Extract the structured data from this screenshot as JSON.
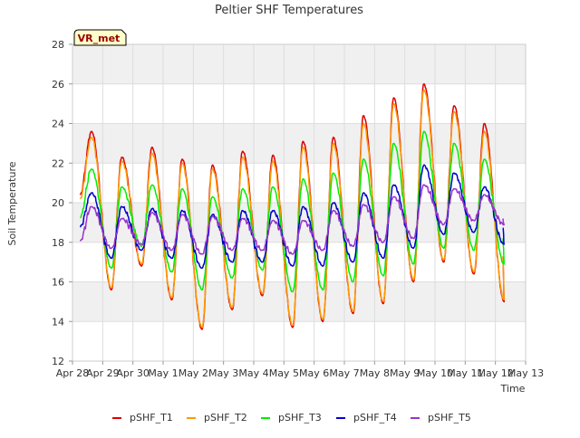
{
  "chart_data": {
    "type": "line",
    "title": "Peltier SHF Temperatures",
    "xlabel": "Time",
    "ylabel": "Soil Temperature",
    "badge": "VR_met",
    "ylim": [
      12,
      28
    ],
    "yticks": [
      12,
      14,
      16,
      18,
      20,
      22,
      24,
      26,
      28
    ],
    "xlim": [
      0,
      15
    ],
    "xticks": [
      {
        "x": 0,
        "label": "Apr 28"
      },
      {
        "x": 1,
        "label": "Apr 29"
      },
      {
        "x": 2,
        "label": "Apr 30"
      },
      {
        "x": 3,
        "label": "May 1"
      },
      {
        "x": 4,
        "label": "May 2"
      },
      {
        "x": 5,
        "label": "May 3"
      },
      {
        "x": 6,
        "label": "May 4"
      },
      {
        "x": 7,
        "label": "May 5"
      },
      {
        "x": 8,
        "label": "May 6"
      },
      {
        "x": 9,
        "label": "May 7"
      },
      {
        "x": 10,
        "label": "May 8"
      },
      {
        "x": 11,
        "label": "May 9"
      },
      {
        "x": 12,
        "label": "May 10"
      },
      {
        "x": 13,
        "label": "May 11"
      },
      {
        "x": 14,
        "label": "May 12"
      },
      {
        "x": 15,
        "label": "May 13"
      }
    ],
    "grid": true,
    "legend": "bottom",
    "x_start": 0.25,
    "x_end": 14.25,
    "series": [
      {
        "name": "pSHF_T1",
        "color": "#dd0000",
        "min": [
          null,
          15.6,
          16.8,
          15.1,
          13.6,
          14.6,
          15.3,
          13.7,
          14.0,
          14.4,
          14.9,
          16.0,
          17.0,
          16.4,
          15.0
        ],
        "max": [
          23.6,
          22.3,
          22.8,
          22.2,
          21.9,
          22.6,
          22.4,
          23.1,
          23.3,
          24.4,
          25.3,
          26.0,
          24.9,
          24.0
        ]
      },
      {
        "name": "pSHF_T2",
        "color": "#ff9900",
        "min": [
          null,
          15.7,
          16.9,
          15.2,
          13.7,
          14.7,
          15.4,
          13.8,
          14.1,
          14.5,
          15.0,
          16.1,
          17.1,
          16.5,
          15.1
        ],
        "max": [
          23.3,
          22.1,
          22.5,
          22.0,
          21.7,
          22.3,
          22.1,
          22.8,
          23.0,
          24.0,
          25.0,
          25.7,
          24.6,
          23.6
        ]
      },
      {
        "name": "pSHF_T3",
        "color": "#00ee00",
        "min": [
          null,
          16.7,
          17.8,
          16.5,
          15.6,
          16.2,
          16.6,
          15.5,
          15.6,
          16.0,
          16.3,
          16.9,
          17.7,
          17.6,
          16.9
        ],
        "max": [
          21.7,
          20.8,
          20.9,
          20.7,
          20.3,
          20.7,
          20.8,
          21.2,
          21.5,
          22.2,
          23.0,
          23.6,
          23.0,
          22.2
        ]
      },
      {
        "name": "pSHF_T4",
        "color": "#0000cc",
        "min": [
          null,
          17.2,
          17.6,
          17.2,
          16.7,
          17.0,
          17.0,
          16.8,
          16.8,
          17.0,
          17.2,
          17.7,
          18.4,
          18.5,
          17.9
        ],
        "max": [
          20.5,
          19.8,
          19.7,
          19.6,
          19.4,
          19.6,
          19.6,
          19.8,
          20.0,
          20.5,
          20.9,
          21.9,
          21.5,
          20.8
        ]
      },
      {
        "name": "pSHF_T5",
        "color": "#9933cc",
        "min": [
          null,
          17.7,
          17.9,
          17.6,
          17.4,
          17.6,
          17.6,
          17.4,
          17.6,
          17.8,
          18.0,
          18.2,
          18.9,
          19.1,
          18.9
        ],
        "max": [
          19.8,
          19.2,
          19.5,
          19.4,
          19.3,
          19.2,
          19.1,
          19.1,
          19.6,
          19.9,
          20.3,
          20.9,
          20.7,
          20.4
        ]
      }
    ]
  }
}
